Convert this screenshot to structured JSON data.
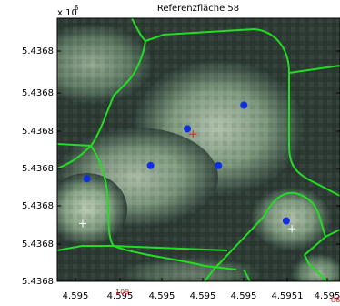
{
  "chart_data": {
    "type": "scatter",
    "title": "Referenzfläche 58",
    "x_exponent_label": "x 10",
    "x_exponent_power": "6",
    "xlim": [
      0,
      1
    ],
    "ylim": [
      0,
      1
    ],
    "y_tick_labels": [
      "5.4368",
      "5.4368",
      "5.4368",
      "5.4368",
      "5.4368",
      "5.4368",
      "5.4368"
    ],
    "x_tick_labels": [
      "4.595",
      "4.595",
      "4.595",
      "4.595",
      "4.595",
      "4.5951",
      "4.595"
    ],
    "x_overlay_labels": [
      "109",
      "06"
    ],
    "background": "remote-sensing image (greyish green-white texture)",
    "segment_boundary_color": "#22dd22",
    "point_color": "#1030e0",
    "points": [
      {
        "x": 0.105,
        "y": 0.39
      },
      {
        "x": 0.33,
        "y": 0.44
      },
      {
        "x": 0.46,
        "y": 0.58
      },
      {
        "x": 0.57,
        "y": 0.44
      },
      {
        "x": 0.66,
        "y": 0.67
      },
      {
        "x": 0.81,
        "y": 0.23
      }
    ],
    "markers": [
      {
        "symbol": "+",
        "color": "#e02020",
        "x": 0.48,
        "y": 0.56
      },
      {
        "symbol": "+",
        "color": "#ffffff",
        "x": 0.09,
        "y": 0.22
      },
      {
        "symbol": "+",
        "color": "#ffffff",
        "x": 0.83,
        "y": 0.2
      }
    ]
  }
}
